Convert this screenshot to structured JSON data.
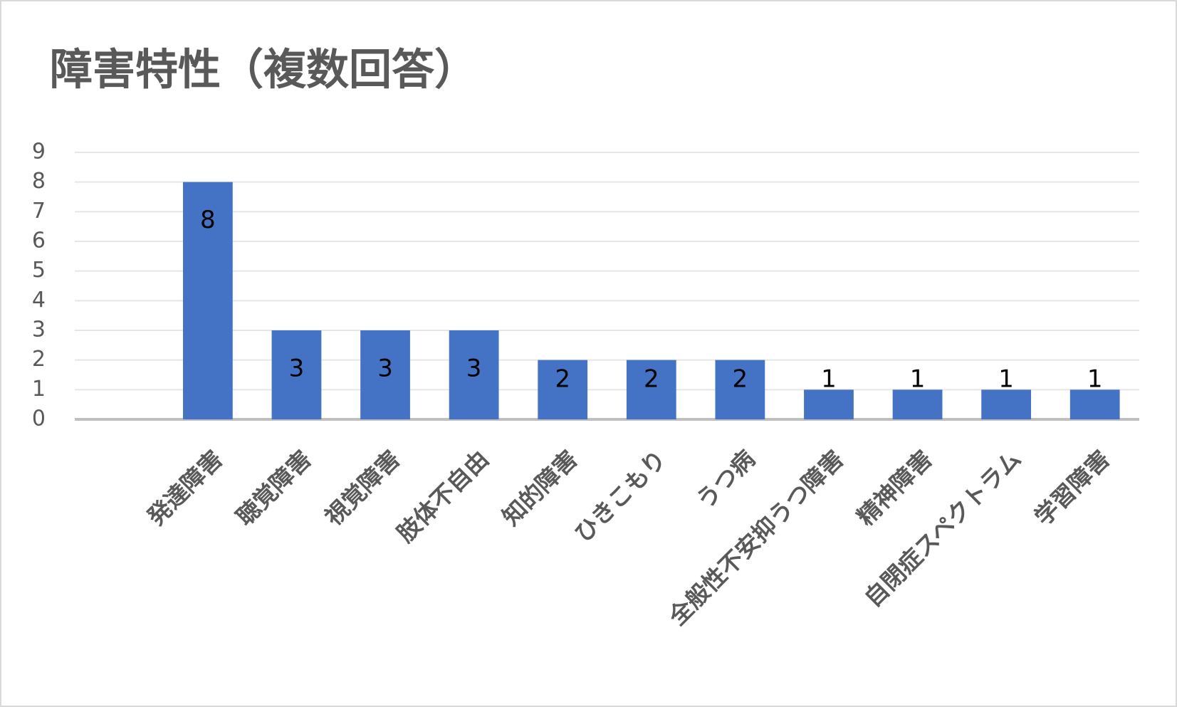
{
  "chart_data": {
    "type": "bar",
    "title": "障害特性（複数回答）",
    "categories": [
      null,
      "発達障害",
      "聴覚障害",
      "視覚障害",
      "肢体不自由",
      "知的障害",
      "ひきこもり",
      "うつ病",
      "全般性不安抑うつ障害",
      "精神障害",
      "自閉症スペクトラム",
      "学習障害"
    ],
    "values": [
      null,
      8,
      3,
      3,
      3,
      2,
      2,
      2,
      1,
      1,
      1,
      1
    ],
    "color": "#4472c4",
    "ylim": [
      0,
      9
    ],
    "yticks": [
      0,
      1,
      2,
      3,
      4,
      5,
      6,
      7,
      8,
      9
    ],
    "grid": true
  }
}
